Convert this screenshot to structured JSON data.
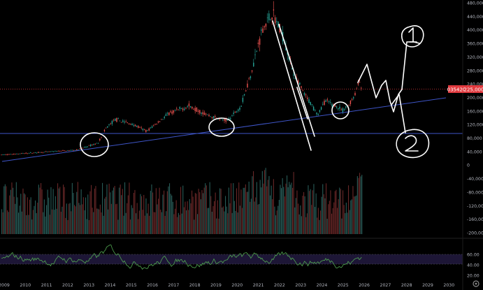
{
  "price_axis": {
    "ticks": [
      "480,000",
      "440,000",
      "400,000",
      "360,000",
      "320,000",
      "280,000",
      "240,000",
      "200,000",
      "160,000",
      "120,000",
      "80,000",
      "40,000",
      "0",
      "-40,000",
      "-80,000",
      "-120,000",
      "-160,000",
      "-200,000"
    ],
    "tick_values": [
      480000,
      440000,
      400000,
      360000,
      320000,
      280000,
      240000,
      200000,
      160000,
      120000,
      80000,
      40000,
      0,
      -40000,
      -80000,
      -120000,
      -160000,
      -200000
    ]
  },
  "price_badges": {
    "ticker_label": "035420",
    "current_price": "225,000"
  },
  "rsi_axis": {
    "ticks": [
      "60.00",
      "40.00",
      "20.00"
    ],
    "tick_values": [
      60,
      40,
      20
    ]
  },
  "time_axis": {
    "labels": [
      "2009",
      "2010",
      "2011",
      "2012",
      "2013",
      "2014",
      "2015",
      "2016",
      "2017",
      "2018",
      "2019",
      "2020",
      "2021",
      "2022",
      "2023",
      "2024",
      "2025",
      "2026",
      "2027",
      "2028",
      "2029",
      "2030"
    ]
  },
  "annotations": {
    "label_1": "1",
    "label_2": "2"
  },
  "settings_icon": "gear-icon",
  "colors": {
    "background": "#000000",
    "up_candle": "#26a69a",
    "down_candle": "#ef5350",
    "trendline": "#3e55c8",
    "price_line": "#e0393e",
    "rsi_line": "#52a852",
    "rsi_band": "#2a1f4d",
    "drawing": "#ffffff"
  }
}
